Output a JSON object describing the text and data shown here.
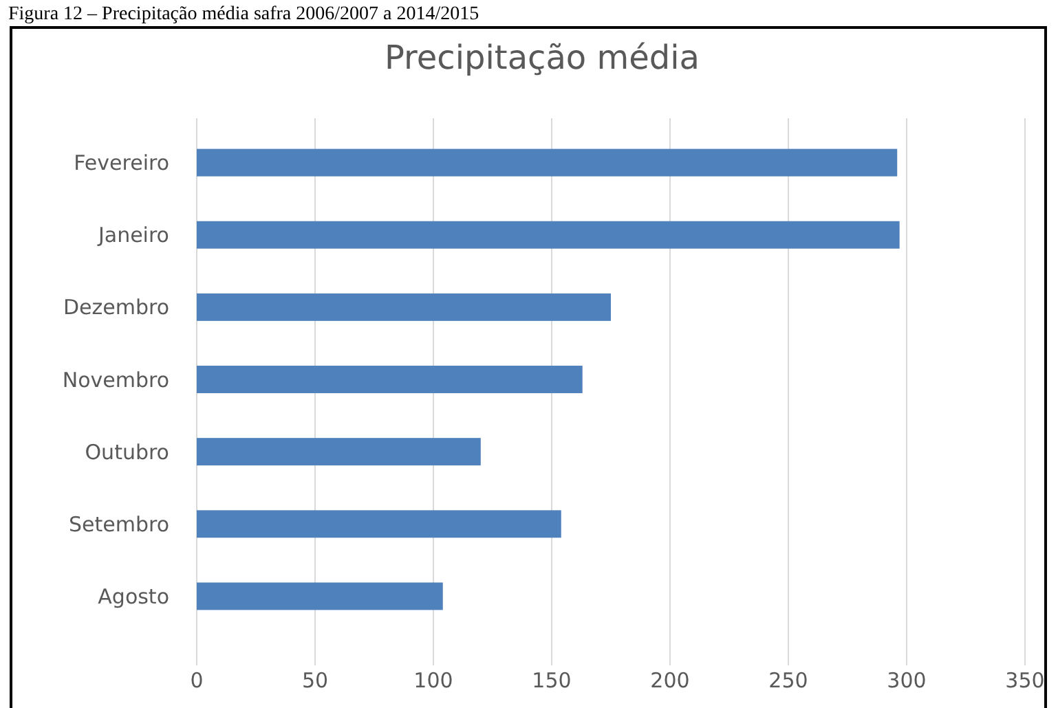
{
  "chart_data": {
    "type": "bar",
    "orientation": "horizontal",
    "title": "Precipitação média",
    "annotations": [
      "Figura 12 – Precipitação média safra 2006/2007 a 2014/2015"
    ],
    "categories": [
      "Fevereiro",
      "Janeiro",
      "Dezembro",
      "Novembro",
      "Outubro",
      "Setembro",
      "Agosto"
    ],
    "values": [
      296,
      297,
      175,
      163,
      120,
      154,
      104
    ],
    "color": "#4f81bd",
    "xlim": [
      0,
      350
    ],
    "xticks": [
      0,
      50,
      100,
      150,
      200,
      250,
      300,
      350
    ],
    "grid": "x"
  }
}
